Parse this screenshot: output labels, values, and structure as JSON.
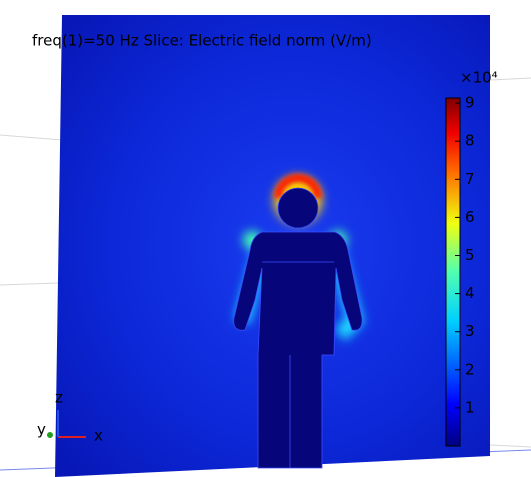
{
  "title": "freq(1)=50 Hz   Slice: Electric field norm (V/m)",
  "colorbar": {
    "scale": "×10⁴",
    "ticks": [
      1,
      2,
      3,
      4,
      5,
      6,
      7,
      8,
      9
    ]
  },
  "triad": {
    "x": "x",
    "y": "y",
    "z": "z"
  }
}
